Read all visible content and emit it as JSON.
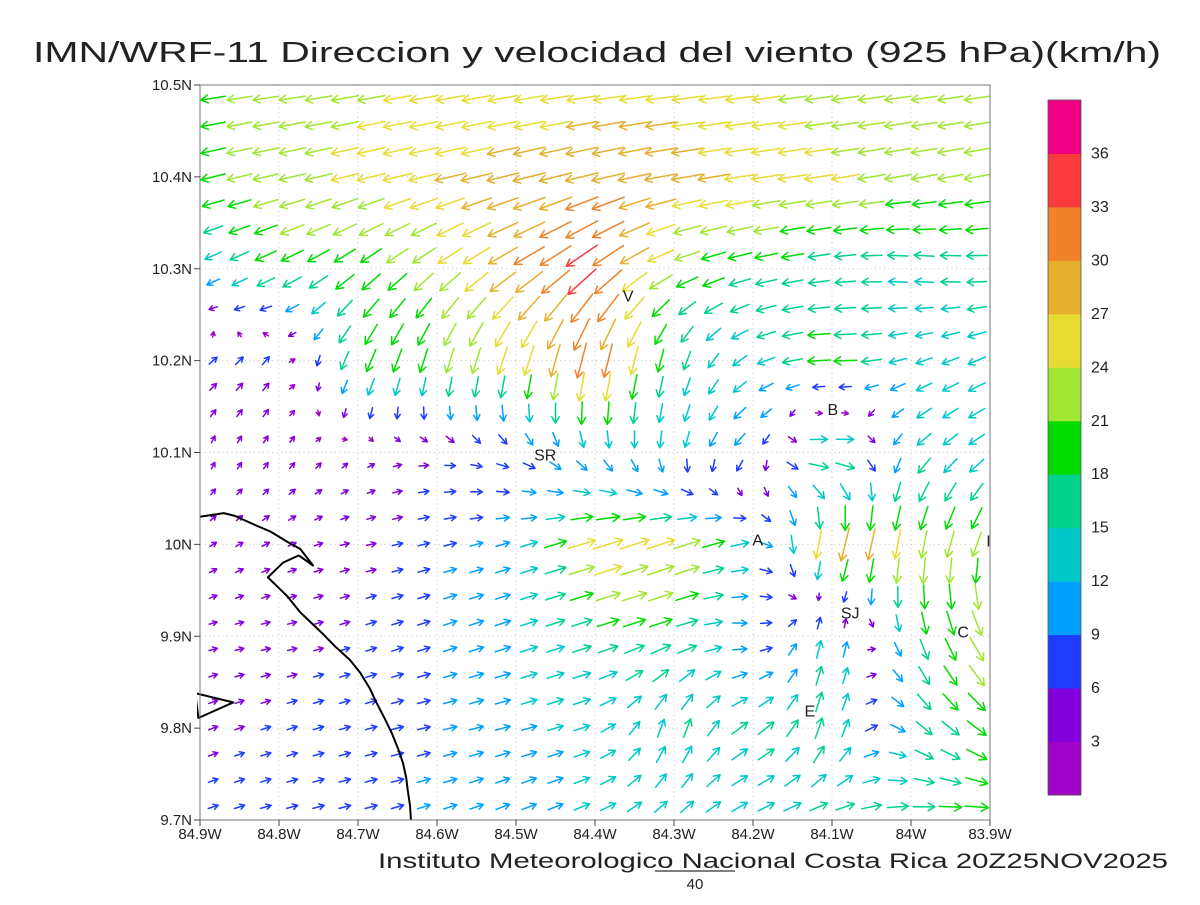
{
  "title": "IMN/WRF-11 Direccion y velocidad del viento (925 hPa)(km/h)",
  "footer": {
    "credit": "Instituto Meteorologico Nacional Costa Rica 20Z25NOV2025",
    "scale_label": "40"
  },
  "chart_data": {
    "type": "vector_field",
    "title": "IMN/WRF-11 Direccion y velocidad del viento (925 hPa)(km/h)",
    "model": "IMN/WRF-11",
    "variable": "Direccion y velocidad del viento",
    "level": "925 hPa",
    "unit": "km/h",
    "valid_time": "20Z25NOV2025",
    "grid_on": true,
    "x_ticks": [
      "84.9W",
      "84.8W",
      "84.7W",
      "84.6W",
      "84.5W",
      "84.4W",
      "84.3W",
      "84.2W",
      "84.1W",
      "84W",
      "83.9W"
    ],
    "y_ticks": [
      "10.5N",
      "10.4N",
      "10.3N",
      "10.2N",
      "10.1N",
      "10N",
      "9.9N",
      "9.8N",
      "9.7N"
    ],
    "grid_lons": [
      84.9,
      84.8,
      84.7,
      84.6,
      84.5,
      84.4,
      84.3,
      84.2,
      84.1,
      84.0,
      83.9
    ],
    "grid_lats": [
      10.5,
      10.4,
      10.3,
      10.2,
      10.1,
      10.0,
      9.9,
      9.8,
      9.7
    ],
    "reference_vector": 40,
    "colorbar": {
      "levels": [
        3,
        6,
        9,
        12,
        15,
        18,
        21,
        24,
        27,
        30,
        33,
        36
      ],
      "colors": [
        "#A000C8",
        "#8200DC",
        "#1E3CFF",
        "#00A0FF",
        "#00C8C8",
        "#00D28C",
        "#00DC00",
        "#A0E632",
        "#E6DC32",
        "#E6AF2D",
        "#F08228",
        "#FA3C3C",
        "#F00082"
      ]
    },
    "stations": [
      {
        "label": "V",
        "lon": 84.358,
        "lat": 10.27
      },
      {
        "label": "B",
        "lon": 84.099,
        "lat": 10.146
      },
      {
        "label": "SR",
        "lon": 84.463,
        "lat": 10.097
      },
      {
        "label": "A",
        "lon": 84.194,
        "lat": 10.004
      },
      {
        "label": "SJ",
        "lon": 84.077,
        "lat": 9.925
      },
      {
        "label": "C",
        "lon": 83.934,
        "lat": 9.904
      },
      {
        "label": "E",
        "lon": 84.128,
        "lat": 9.818
      },
      {
        "label": "I",
        "lon": 83.902,
        "lat": 10.003
      }
    ],
    "wind_grid": {
      "u": [
        [
          -20,
          -22,
          -23,
          -24,
          -25,
          -25,
          -26,
          -24,
          -23,
          -22,
          -21
        ],
        [
          -20,
          -22,
          -24,
          -26,
          -28,
          -29,
          -28,
          -26,
          -24,
          -22,
          -21
        ],
        [
          -10,
          -18,
          -16,
          -18,
          -26,
          -28,
          -20,
          -18,
          -16,
          -15,
          -16
        ],
        [
          5,
          4,
          -8,
          -6,
          -8,
          -8,
          -4,
          -12,
          -20,
          -12,
          -14
        ],
        [
          1,
          2,
          2,
          6,
          8,
          4,
          -2,
          -8,
          24,
          -10,
          -12
        ],
        [
          3,
          4,
          5,
          8,
          10,
          26,
          24,
          12,
          -8,
          -4,
          -8
        ],
        [
          4,
          5,
          6,
          9,
          12,
          16,
          18,
          8,
          2,
          4,
          12
        ],
        [
          5,
          6,
          7,
          9,
          11,
          12,
          4,
          14,
          4,
          12,
          16
        ],
        [
          6,
          7,
          8,
          9,
          10,
          12,
          10,
          12,
          16,
          18,
          20
        ]
      ],
      "v": [
        [
          -3,
          -3,
          -4,
          -4,
          -4,
          -3,
          -3,
          -3,
          -3,
          -3,
          -3
        ],
        [
          -5,
          -5,
          -6,
          -6,
          -7,
          -7,
          -5,
          -4,
          -4,
          -4,
          -4
        ],
        [
          -5,
          -9,
          -12,
          -14,
          -16,
          -22,
          -8,
          -4,
          -2,
          2,
          0
        ],
        [
          4,
          5,
          -18,
          -20,
          -24,
          -32,
          -16,
          -6,
          0,
          -4,
          -6
        ],
        [
          3,
          3,
          2,
          0,
          -4,
          -10,
          -12,
          -8,
          2,
          -10,
          -8
        ],
        [
          2,
          2,
          1,
          2,
          3,
          8,
          8,
          2,
          -30,
          -24,
          -20
        ],
        [
          1,
          1,
          2,
          3,
          4,
          5,
          6,
          -2,
          16,
          -16,
          -22
        ],
        [
          2,
          2,
          2,
          2,
          3,
          4,
          16,
          8,
          18,
          -10,
          -12
        ],
        [
          2,
          2,
          2,
          3,
          4,
          5,
          8,
          6,
          4,
          2,
          0
        ]
      ]
    },
    "coastline": [
      [
        [
          84.9,
          10.03
        ],
        [
          84.87,
          10.034
        ],
        [
          84.856,
          10.031
        ],
        [
          84.83,
          10.021
        ],
        [
          84.811,
          10.014
        ],
        [
          84.788,
          10.002
        ],
        [
          84.773,
          9.995
        ],
        [
          84.757,
          9.977
        ],
        [
          84.775,
          9.988
        ],
        [
          84.795,
          9.98
        ],
        [
          84.807,
          9.97
        ],
        [
          84.814,
          9.964
        ],
        [
          84.79,
          9.944
        ],
        [
          84.773,
          9.926
        ],
        [
          84.745,
          9.903
        ],
        [
          84.729,
          9.889
        ],
        [
          84.71,
          9.874
        ],
        [
          84.697,
          9.86
        ],
        [
          84.685,
          9.843
        ],
        [
          84.678,
          9.83
        ],
        [
          84.666,
          9.81
        ],
        [
          84.657,
          9.794
        ],
        [
          84.649,
          9.777
        ],
        [
          84.643,
          9.762
        ],
        [
          84.639,
          9.746
        ],
        [
          84.637,
          9.732
        ],
        [
          84.634,
          9.715
        ],
        [
          84.633,
          9.7
        ]
      ],
      [
        [
          84.906,
          9.838
        ],
        [
          84.858,
          9.828
        ],
        [
          84.902,
          9.811
        ],
        [
          84.906,
          9.838
        ]
      ]
    ]
  }
}
